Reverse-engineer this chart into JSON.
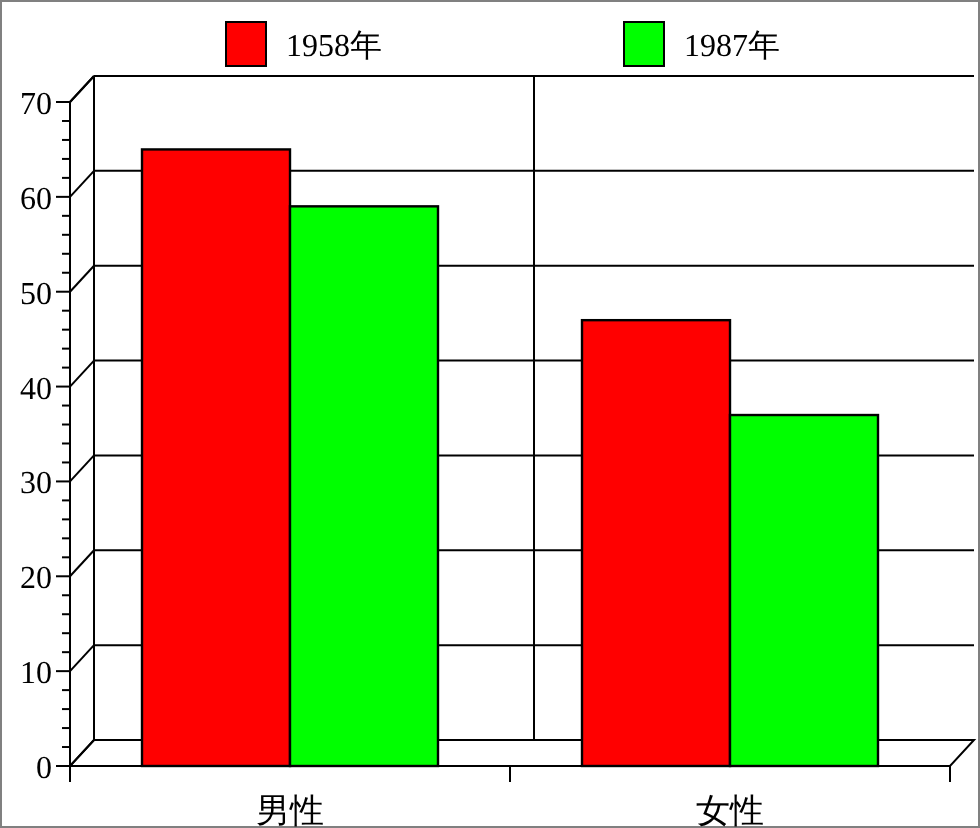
{
  "chart_data": {
    "type": "bar",
    "categories": [
      "男性",
      "女性"
    ],
    "series": [
      {
        "name": "1958年",
        "color": "#ff0000",
        "values": [
          65,
          47
        ]
      },
      {
        "name": "1987年",
        "color": "#00ff00",
        "values": [
          59,
          37
        ]
      }
    ],
    "ylim": [
      0,
      70
    ],
    "yticks": [
      0,
      {
        "value": 2,
        "label": null
      },
      {
        "value": 4,
        "label": null
      },
      {
        "value": 6,
        "label": null
      },
      {
        "value": 8,
        "label": null
      },
      10,
      {
        "value": 12,
        "label": null
      },
      {
        "value": 14,
        "label": null
      },
      {
        "value": 16,
        "label": null
      },
      {
        "value": 18,
        "label": null
      },
      20,
      {
        "value": 22,
        "label": null
      },
      {
        "value": 24,
        "label": null
      },
      {
        "value": 26,
        "label": null
      },
      {
        "value": 28,
        "label": null
      },
      30,
      {
        "value": 32,
        "label": null
      },
      {
        "value": 34,
        "label": null
      },
      {
        "value": 36,
        "label": null
      },
      {
        "value": 38,
        "label": null
      },
      40,
      {
        "value": 42,
        "label": null
      },
      {
        "value": 44,
        "label": null
      },
      {
        "value": 46,
        "label": null
      },
      {
        "value": 48,
        "label": null
      },
      50,
      {
        "value": 52,
        "label": null
      },
      {
        "value": 54,
        "label": null
      },
      {
        "value": 56,
        "label": null
      },
      {
        "value": 58,
        "label": null
      },
      60,
      {
        "value": 62,
        "label": null
      },
      {
        "value": 64,
        "label": null
      },
      {
        "value": 66,
        "label": null
      },
      {
        "value": 68,
        "label": null
      },
      70
    ],
    "grid": "y",
    "legend": "top"
  }
}
